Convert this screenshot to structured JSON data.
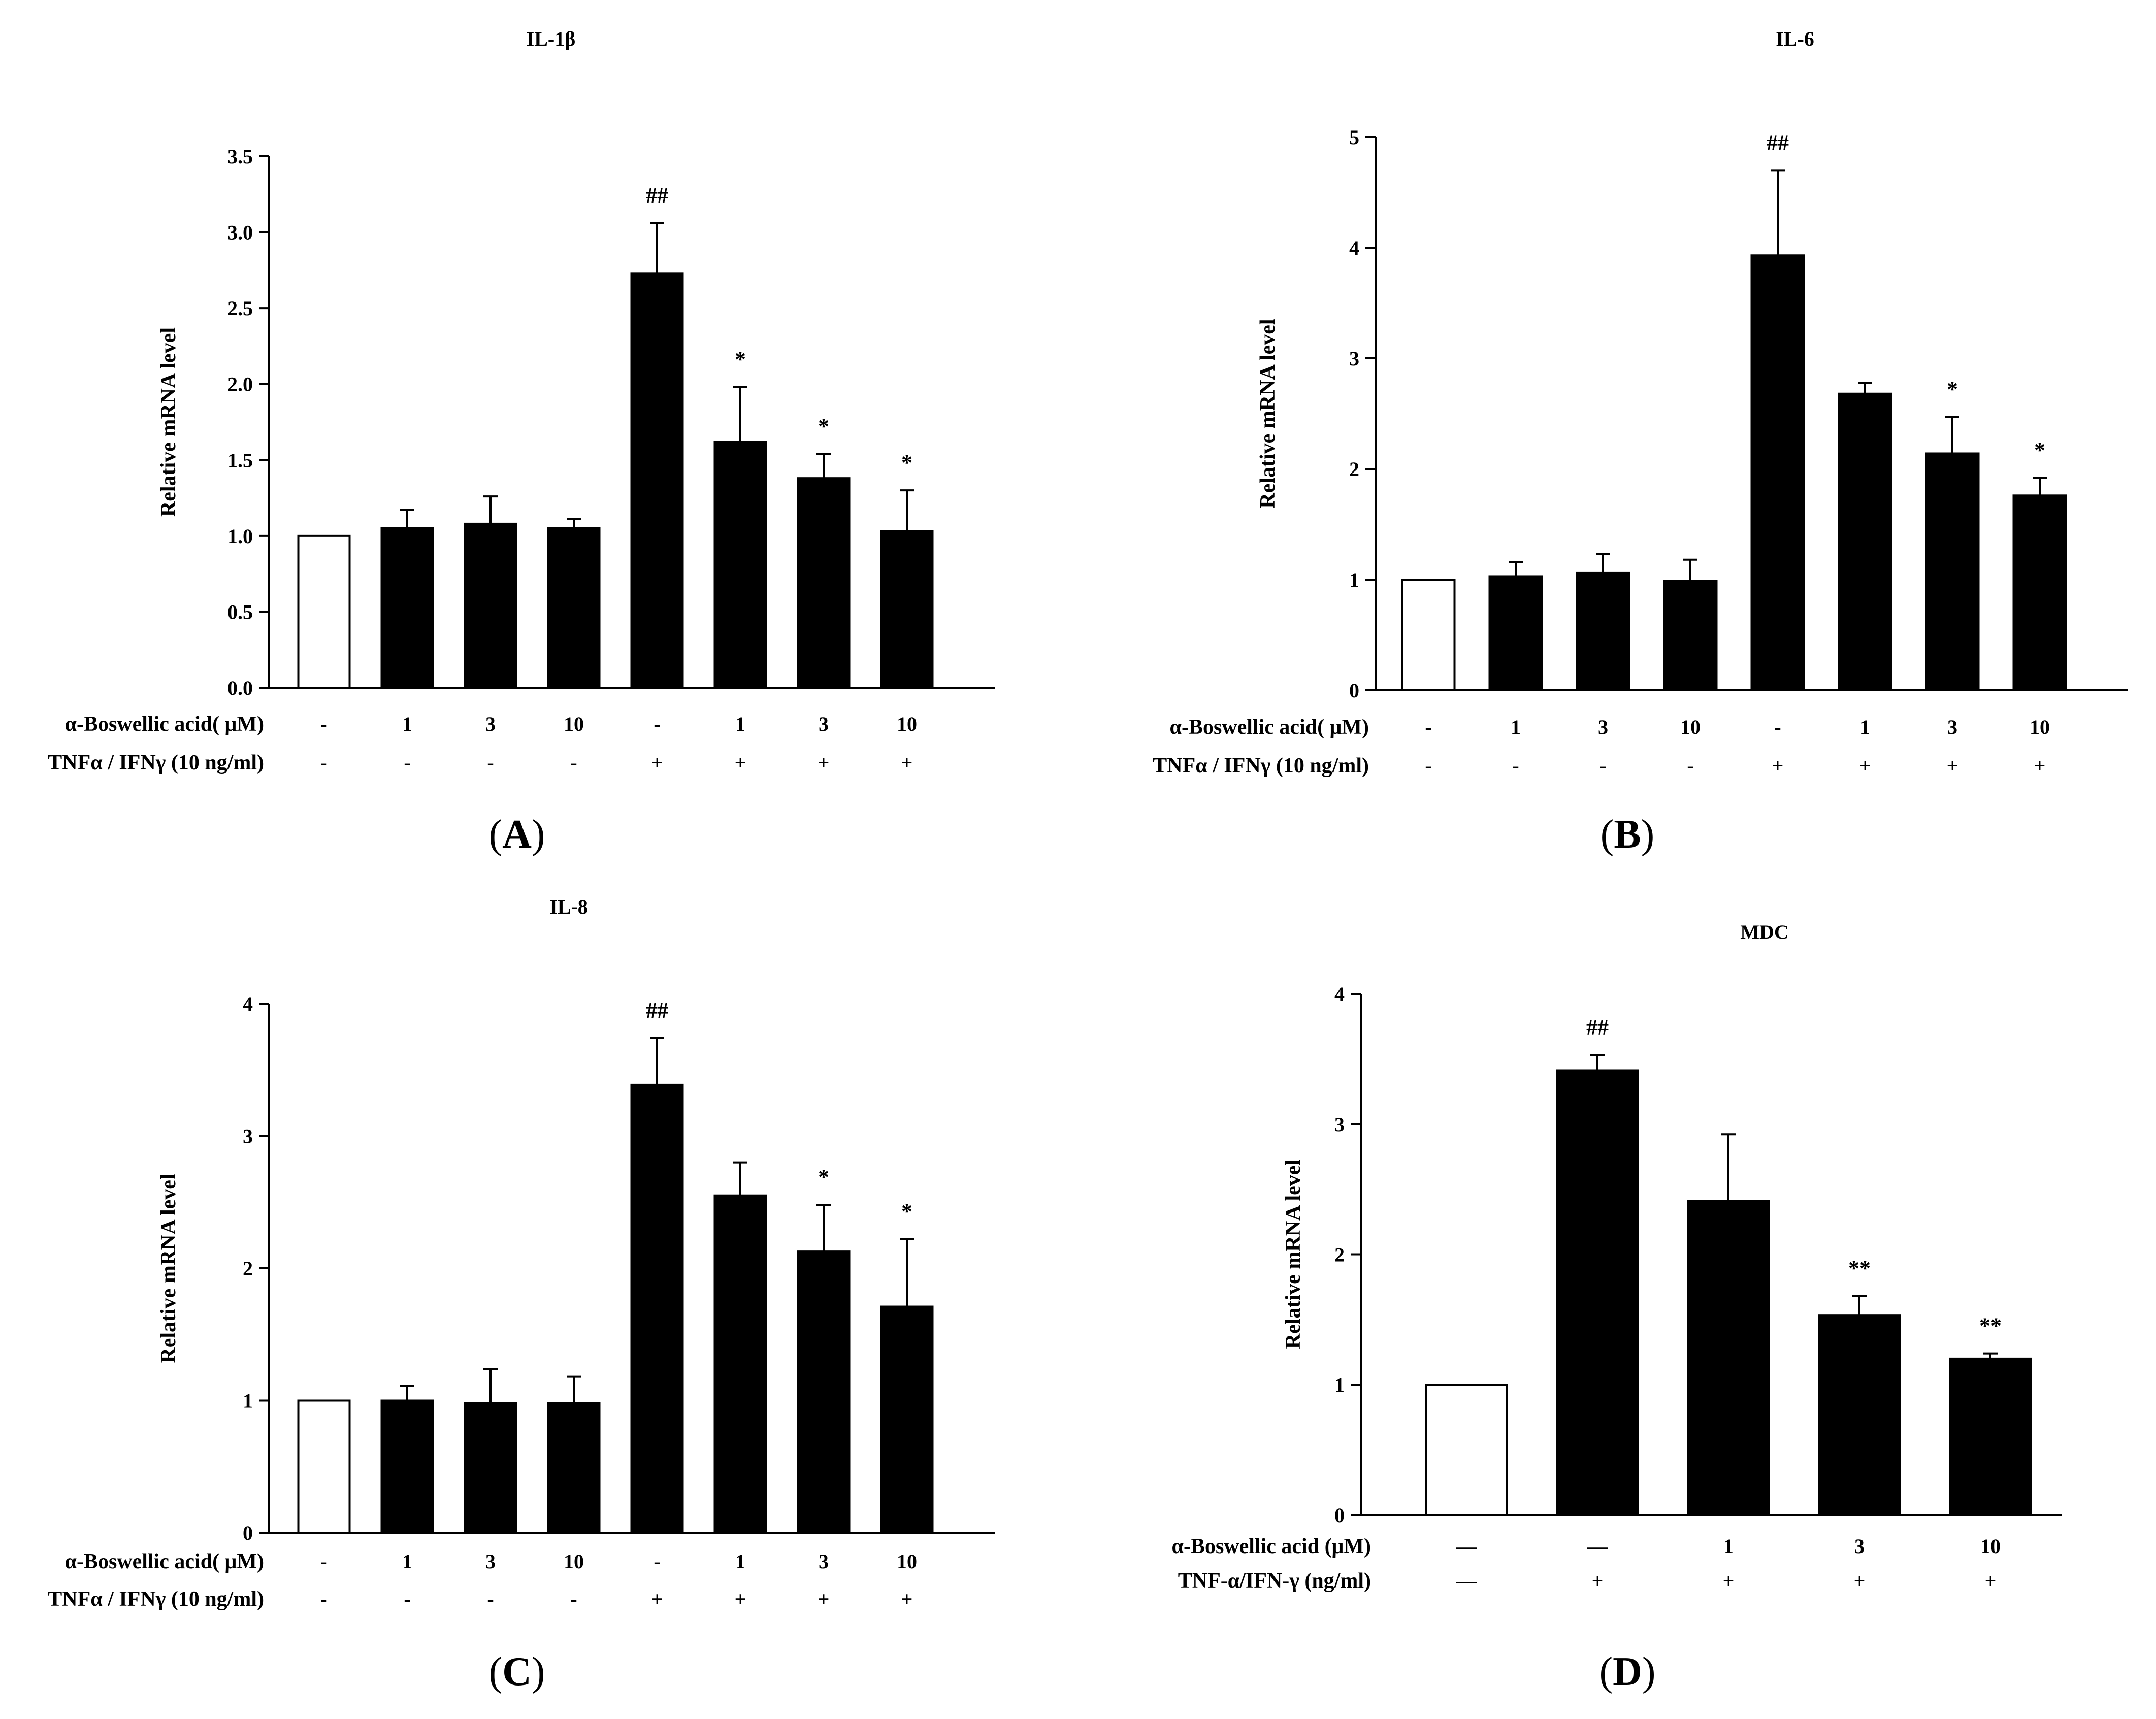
{
  "chart_data": [
    {
      "type": "bar",
      "panel_label": "A",
      "title": "IL-1β",
      "ylabel": "Relative mRNA level",
      "ylim": [
        0,
        3.5
      ],
      "yticks": [
        "0.0",
        "0.5",
        "1.0",
        "1.5",
        "2.0",
        "2.5",
        "3.0",
        "3.5"
      ],
      "values": [
        1.0,
        1.05,
        1.08,
        1.05,
        2.73,
        1.62,
        1.38,
        1.03
      ],
      "errors": [
        0,
        0.12,
        0.18,
        0.06,
        0.33,
        0.36,
        0.16,
        0.27
      ],
      "bar_fill": [
        "white",
        "black",
        "black",
        "black",
        "black",
        "black",
        "black",
        "black"
      ],
      "significance": [
        "",
        "",
        "",
        "",
        "##",
        "*",
        "*",
        "*"
      ],
      "rows": [
        {
          "label": "α-Boswellic acid( μM)",
          "cells": [
            "-",
            "1",
            "3",
            "10",
            "-",
            "1",
            "3",
            "10"
          ]
        },
        {
          "label": "TNFα / IFNγ (10 ng/ml)",
          "cells": [
            "-",
            "-",
            "-",
            "-",
            "+",
            "+",
            "+",
            "+"
          ]
        }
      ]
    },
    {
      "type": "bar",
      "panel_label": "B",
      "title": "IL-6",
      "ylabel": "Relative mRNA level",
      "ylim": [
        0,
        5
      ],
      "yticks": [
        "0",
        "1",
        "2",
        "3",
        "4",
        "5"
      ],
      "values": [
        1.0,
        1.03,
        1.06,
        0.99,
        3.93,
        2.68,
        2.14,
        1.76
      ],
      "errors": [
        0,
        0.13,
        0.17,
        0.19,
        0.77,
        0.1,
        0.33,
        0.16
      ],
      "bar_fill": [
        "white",
        "black",
        "black",
        "black",
        "black",
        "black",
        "black",
        "black"
      ],
      "significance": [
        "",
        "",
        "",
        "",
        "##",
        "",
        "*",
        "*"
      ],
      "rows": [
        {
          "label": "α-Boswellic acid( μM)",
          "cells": [
            "-",
            "1",
            "3",
            "10",
            "-",
            "1",
            "3",
            "10"
          ]
        },
        {
          "label": "TNFα / IFNγ (10 ng/ml)",
          "cells": [
            "-",
            "-",
            "-",
            "-",
            "+",
            "+",
            "+",
            "+"
          ]
        }
      ]
    },
    {
      "type": "bar",
      "panel_label": "C",
      "title": "IL-8",
      "ylabel": "Relative mRNA level",
      "ylim": [
        0,
        4
      ],
      "yticks": [
        "0",
        "1",
        "2",
        "3",
        "4"
      ],
      "values": [
        1.0,
        1.0,
        0.98,
        0.98,
        3.39,
        2.55,
        2.13,
        1.71
      ],
      "errors": [
        0,
        0.11,
        0.26,
        0.2,
        0.35,
        0.25,
        0.35,
        0.51
      ],
      "bar_fill": [
        "white",
        "black",
        "black",
        "black",
        "black",
        "black",
        "black",
        "black"
      ],
      "significance": [
        "",
        "",
        "",
        "",
        "##",
        "",
        "*",
        "*"
      ],
      "rows": [
        {
          "label": "α-Boswellic acid( μM)",
          "cells": [
            "-",
            "1",
            "3",
            "10",
            "-",
            "1",
            "3",
            "10"
          ]
        },
        {
          "label": "TNFα / IFNγ (10 ng/ml)",
          "cells": [
            "-",
            "-",
            "-",
            "-",
            "+",
            "+",
            "+",
            "+"
          ]
        }
      ]
    },
    {
      "type": "bar",
      "panel_label": "D",
      "title": "MDC",
      "ylabel": "Relative mRNA level",
      "ylim": [
        0,
        4
      ],
      "yticks": [
        "0",
        "1",
        "2",
        "3",
        "4"
      ],
      "values": [
        1.0,
        3.41,
        2.41,
        1.53,
        1.2
      ],
      "errors": [
        0,
        0.12,
        0.51,
        0.15,
        0.04
      ],
      "bar_fill": [
        "white",
        "black",
        "black",
        "black",
        "black"
      ],
      "significance": [
        "",
        "##",
        "",
        "**",
        "**"
      ],
      "rows": [
        {
          "label": "α-Boswellic acid (μM)",
          "cells": [
            "—",
            "—",
            "1",
            "3",
            "10"
          ]
        },
        {
          "label": "TNF-α/IFN-γ (ng/ml)",
          "cells": [
            "—",
            "+",
            "+",
            "+",
            "+"
          ]
        }
      ]
    }
  ]
}
